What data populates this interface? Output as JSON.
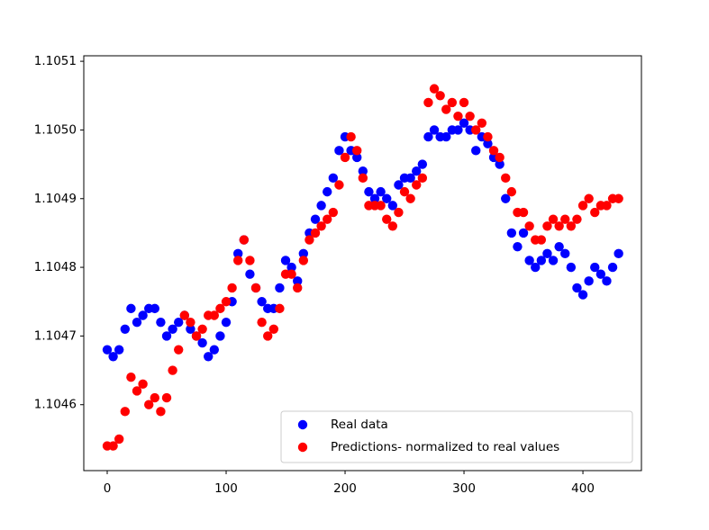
{
  "chart_data": {
    "type": "scatter",
    "x": [
      0,
      5,
      10,
      15,
      20,
      25,
      30,
      35,
      40,
      45,
      50,
      55,
      60,
      65,
      70,
      75,
      80,
      85,
      90,
      95,
      100,
      105,
      110,
      115,
      120,
      125,
      130,
      135,
      140,
      145,
      150,
      155,
      160,
      165,
      170,
      175,
      180,
      185,
      190,
      195,
      200,
      205,
      210,
      215,
      220,
      225,
      230,
      235,
      240,
      245,
      250,
      255,
      260,
      265,
      270,
      275,
      280,
      285,
      290,
      295,
      300,
      305,
      310,
      315,
      320,
      325,
      330,
      335,
      340,
      345,
      350,
      355,
      360,
      365,
      370,
      375,
      380,
      385,
      390,
      395,
      400,
      405,
      410,
      415,
      420,
      425,
      430
    ],
    "series": [
      {
        "name": "Real data",
        "color": "#0000ff",
        "values": [
          1.10468,
          1.10467,
          1.10468,
          1.10471,
          1.10474,
          1.10472,
          1.10473,
          1.10474,
          1.10474,
          1.10472,
          1.1047,
          1.10471,
          1.10472,
          1.10473,
          1.10471,
          1.1047,
          1.10469,
          1.10467,
          1.10468,
          1.1047,
          1.10472,
          1.10475,
          1.10482,
          1.10484,
          1.10479,
          1.10477,
          1.10475,
          1.10474,
          1.10474,
          1.10477,
          1.10481,
          1.1048,
          1.10478,
          1.10482,
          1.10485,
          1.10487,
          1.10489,
          1.10491,
          1.10493,
          1.10497,
          1.10499,
          1.10497,
          1.10496,
          1.10494,
          1.10491,
          1.1049,
          1.10491,
          1.1049,
          1.10489,
          1.10492,
          1.10493,
          1.10493,
          1.10494,
          1.10495,
          1.10499,
          1.105,
          1.10499,
          1.10499,
          1.105,
          1.105,
          1.10501,
          1.105,
          1.10497,
          1.10499,
          1.10498,
          1.10496,
          1.10495,
          1.1049,
          1.10485,
          1.10483,
          1.10485,
          1.10481,
          1.1048,
          1.10481,
          1.10482,
          1.10481,
          1.10483,
          1.10482,
          1.1048,
          1.10477,
          1.10476,
          1.10478,
          1.1048,
          1.10479,
          1.10478,
          1.1048,
          1.10482
        ]
      },
      {
        "name": "Predictions- normalized to real values",
        "color": "#ff0000",
        "values": [
          1.10454,
          1.10454,
          1.10455,
          1.10459,
          1.10464,
          1.10462,
          1.10463,
          1.1046,
          1.10461,
          1.10459,
          1.10461,
          1.10465,
          1.10468,
          1.10473,
          1.10472,
          1.1047,
          1.10471,
          1.10473,
          1.10473,
          1.10474,
          1.10475,
          1.10477,
          1.10481,
          1.10484,
          1.10481,
          1.10477,
          1.10472,
          1.1047,
          1.10471,
          1.10474,
          1.10479,
          1.10479,
          1.10477,
          1.10481,
          1.10484,
          1.10485,
          1.10486,
          1.10487,
          1.10488,
          1.10492,
          1.10496,
          1.10499,
          1.10497,
          1.10493,
          1.10489,
          1.10489,
          1.10489,
          1.10487,
          1.10486,
          1.10488,
          1.10491,
          1.1049,
          1.10492,
          1.10493,
          1.10504,
          1.10506,
          1.10505,
          1.10503,
          1.10504,
          1.10502,
          1.10504,
          1.10502,
          1.105,
          1.10501,
          1.10499,
          1.10497,
          1.10496,
          1.10493,
          1.10491,
          1.10488,
          1.10488,
          1.10486,
          1.10484,
          1.10484,
          1.10486,
          1.10487,
          1.10486,
          1.10487,
          1.10486,
          1.10487,
          1.10489,
          1.1049,
          1.10488,
          1.10489,
          1.10489,
          1.1049,
          1.1049
        ]
      }
    ],
    "xlim": [
      -19.7,
      449.2
    ],
    "xticks": [
      0,
      100,
      200,
      300,
      400
    ],
    "ylim": [
      1.104504,
      1.105108
    ],
    "yticks": [
      1.1046,
      1.1047,
      1.1048,
      1.1049,
      {
        "value": 1.105,
        "label": "1.1050"
      },
      1.1051
    ],
    "legend": "lower right"
  }
}
